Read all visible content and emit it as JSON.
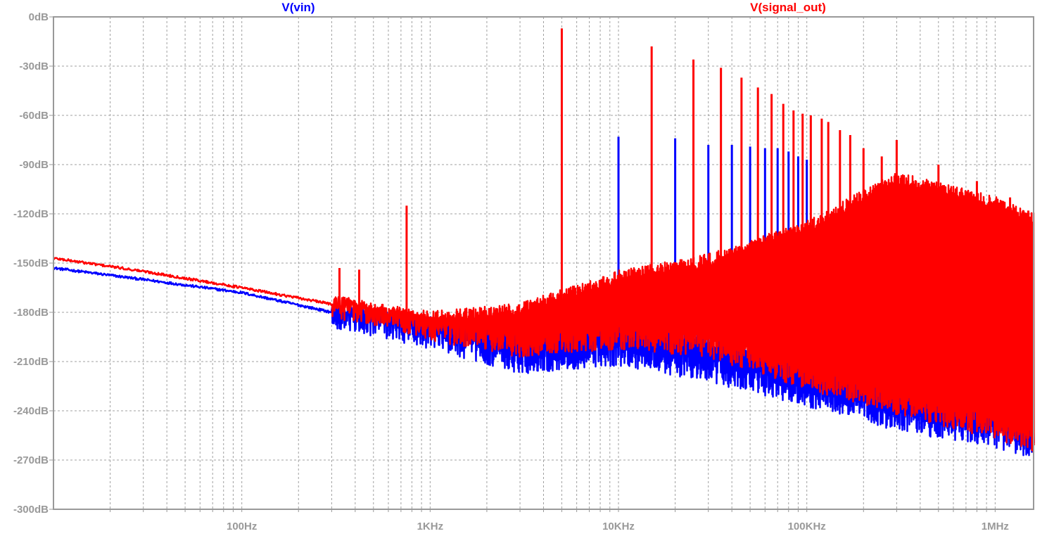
{
  "chart_data": {
    "type": "line",
    "title": "",
    "xlabel": "",
    "ylabel": "",
    "x_scale": "log",
    "xlim_hz": [
      10,
      1600000
    ],
    "ylim_db": [
      -300,
      0
    ],
    "grid": true,
    "y_ticks": [
      {
        "value": 0,
        "label": "0dB"
      },
      {
        "value": -30,
        "label": "-30dB"
      },
      {
        "value": -60,
        "label": "-60dB"
      },
      {
        "value": -90,
        "label": "-90dB"
      },
      {
        "value": -120,
        "label": "-120dB"
      },
      {
        "value": -150,
        "label": "-150dB"
      },
      {
        "value": -180,
        "label": "-180dB"
      },
      {
        "value": -210,
        "label": "-210dB"
      },
      {
        "value": -240,
        "label": "-240dB"
      },
      {
        "value": -270,
        "label": "-270dB"
      },
      {
        "value": -300,
        "label": "-300dB"
      }
    ],
    "x_ticks": [
      {
        "value": 100,
        "label": "100Hz"
      },
      {
        "value": 1000,
        "label": "1KHz"
      },
      {
        "value": 10000,
        "label": "10KHz"
      },
      {
        "value": 100000,
        "label": "100KHz"
      },
      {
        "value": 1000000,
        "label": "1MHz"
      }
    ],
    "series": [
      {
        "name": "V(vin)",
        "color": "#0000ff",
        "baseline": [
          [
            10,
            -153
          ],
          [
            30,
            -160
          ],
          [
            100,
            -168
          ],
          [
            300,
            -180
          ],
          [
            1000,
            -188
          ],
          [
            3000,
            -194
          ],
          [
            10000,
            -185
          ],
          [
            30000,
            -200
          ],
          [
            100000,
            -210
          ],
          [
            300000,
            -225
          ],
          [
            1000000,
            -240
          ],
          [
            1600000,
            -248
          ]
        ],
        "floor": [
          [
            10,
            -153
          ],
          [
            300,
            -182
          ],
          [
            1000,
            -195
          ],
          [
            3000,
            -210
          ],
          [
            10000,
            -205
          ],
          [
            30000,
            -215
          ],
          [
            100000,
            -230
          ],
          [
            300000,
            -245
          ],
          [
            1000000,
            -255
          ],
          [
            1600000,
            -262
          ]
        ],
        "peaks": [
          [
            10000,
            -73
          ],
          [
            20000,
            -74
          ],
          [
            30000,
            -78
          ],
          [
            40000,
            -78
          ],
          [
            50000,
            -79
          ],
          [
            60000,
            -80
          ],
          [
            70000,
            -80
          ],
          [
            80000,
            -82
          ],
          [
            90000,
            -85
          ],
          [
            100000,
            -87
          ]
        ]
      },
      {
        "name": "V(signal_out)",
        "color": "#ff0000",
        "baseline": [
          [
            10,
            -147
          ],
          [
            30,
            -155
          ],
          [
            100,
            -165
          ],
          [
            300,
            -175
          ],
          [
            500,
            -180
          ],
          [
            1000,
            -185
          ],
          [
            3000,
            -180
          ],
          [
            10000,
            -160
          ],
          [
            30000,
            -150
          ],
          [
            100000,
            -130
          ],
          [
            300000,
            -100
          ],
          [
            1000000,
            -115
          ],
          [
            1600000,
            -125
          ]
        ],
        "floor": [
          [
            10,
            -147
          ],
          [
            300,
            -176
          ],
          [
            1000,
            -190
          ],
          [
            3000,
            -200
          ],
          [
            10000,
            -195
          ],
          [
            30000,
            -200
          ],
          [
            100000,
            -220
          ],
          [
            300000,
            -235
          ],
          [
            1000000,
            -250
          ],
          [
            1600000,
            -258
          ]
        ],
        "peaks": [
          [
            330,
            -153
          ],
          [
            420,
            -154
          ],
          [
            750,
            -115
          ],
          [
            5000,
            -7
          ],
          [
            15000,
            -18
          ],
          [
            25000,
            -26
          ],
          [
            35000,
            -31
          ],
          [
            45000,
            -37
          ],
          [
            55000,
            -43
          ],
          [
            65000,
            -47
          ],
          [
            75000,
            -53
          ],
          [
            85000,
            -57
          ],
          [
            95000,
            -59
          ],
          [
            105000,
            -60
          ],
          [
            120000,
            -62
          ],
          [
            130000,
            -64
          ],
          [
            150000,
            -69
          ],
          [
            170000,
            -72
          ],
          [
            200000,
            -80
          ],
          [
            250000,
            -85
          ],
          [
            300000,
            -75
          ],
          [
            500000,
            -90
          ],
          [
            800000,
            -100
          ],
          [
            1200000,
            -110
          ],
          [
            1500000,
            -118
          ]
        ]
      }
    ]
  }
}
